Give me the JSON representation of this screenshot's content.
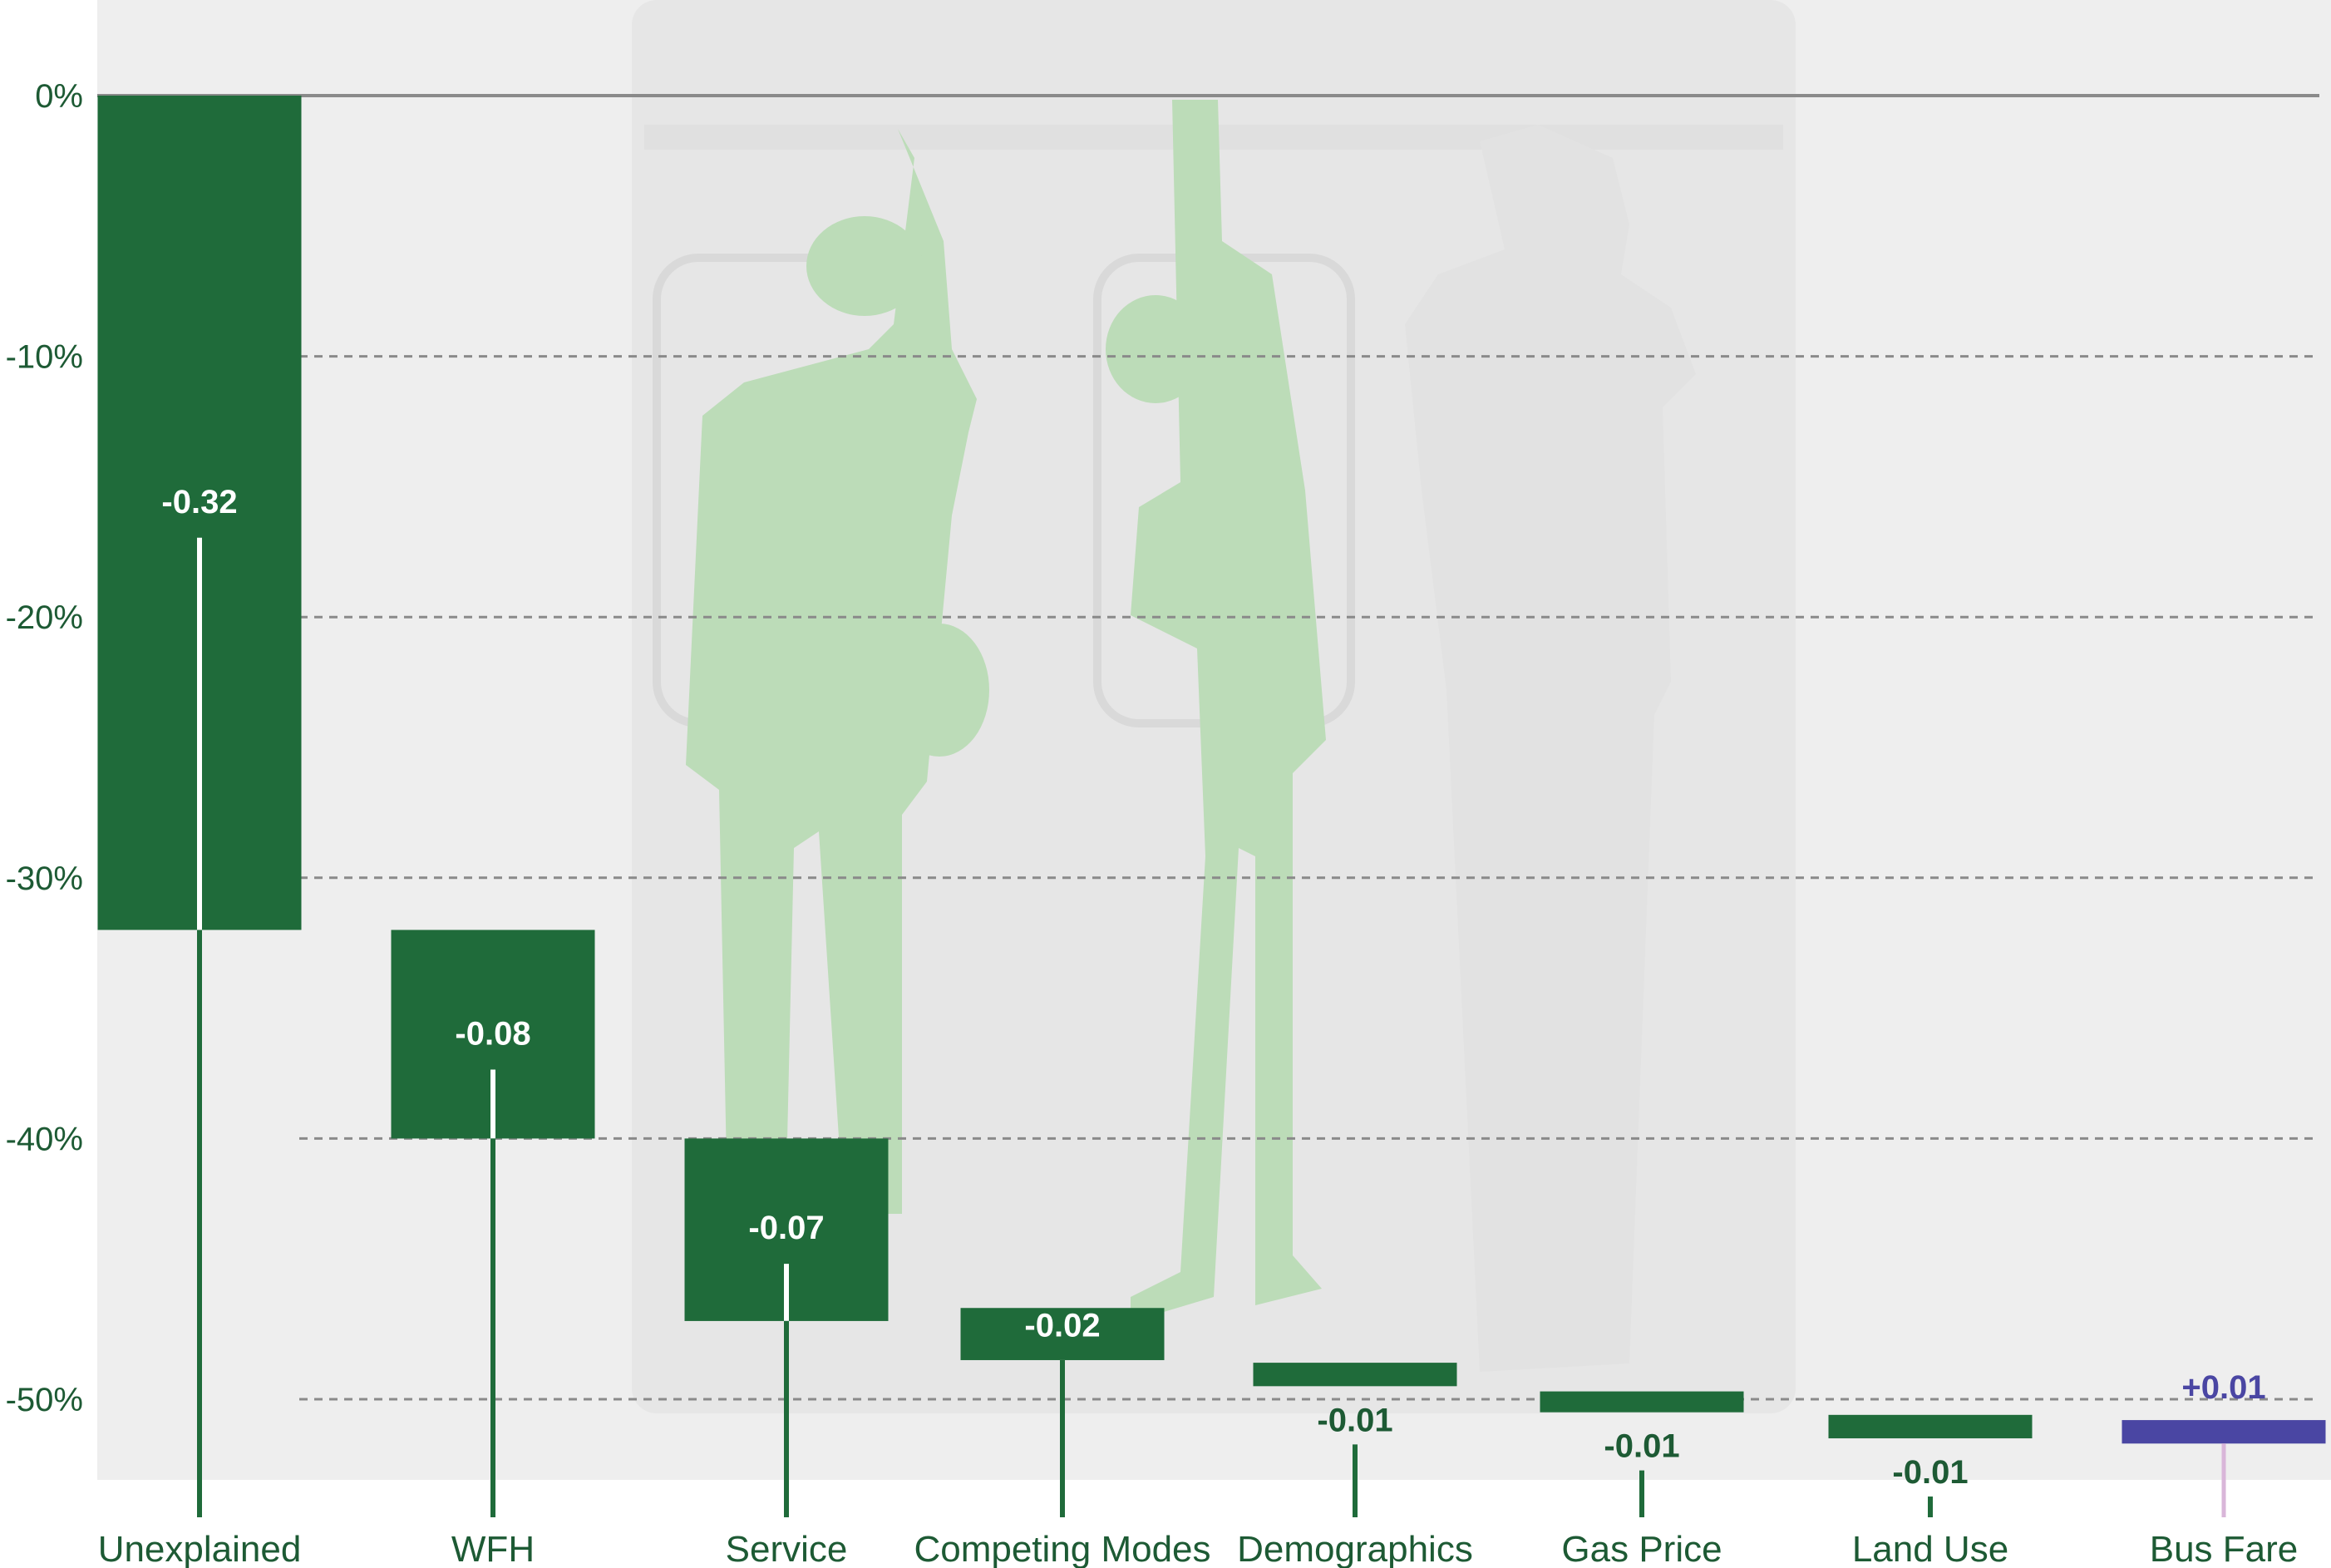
{
  "chart_data": {
    "type": "bar",
    "subtype": "waterfall",
    "title": "",
    "xlabel": "",
    "ylabel": "",
    "ylim": [
      -53,
      0
    ],
    "y_ticks": [
      0,
      -10,
      -20,
      -30,
      -40,
      -50
    ],
    "y_tick_labels": [
      "0%",
      "-10%",
      "-20%",
      "-30%",
      "-40%",
      "-50%"
    ],
    "grid": "horizontal dashed",
    "categories": [
      "Unexplained",
      "WFH",
      "Service",
      "Competing Modes",
      "Demographics",
      "Gas Price",
      "Land Use",
      "Bus Fare"
    ],
    "values": [
      -0.32,
      -0.08,
      -0.07,
      -0.02,
      -0.01,
      -0.01,
      -0.01,
      0.01
    ],
    "value_labels": [
      "-0.32",
      "-0.08",
      "-0.07",
      "-0.02",
      "-0.01",
      "-0.01",
      "-0.01",
      "+0.01"
    ],
    "bar_ranges": [
      [
        0,
        -32
      ],
      [
        -32,
        -40
      ],
      [
        -40,
        -47
      ],
      [
        -46.5,
        -48.5
      ],
      [
        -48.6,
        -49.5
      ],
      [
        -49.7,
        -50.5
      ],
      [
        -50.6,
        -51.5
      ],
      [
        -51.7,
        -50.8
      ]
    ],
    "colors": {
      "decrease": "#1f6b3a",
      "increase": "#4a46a3",
      "label_dark": "#1d5a34",
      "label_increase": "#4a46a3",
      "baseline": "#8a8a8a",
      "grid": "#8a8a8a",
      "background": "#eeeeee",
      "photo_figures": "#bcdcb8"
    },
    "background_image": "subway-riders-photo"
  }
}
